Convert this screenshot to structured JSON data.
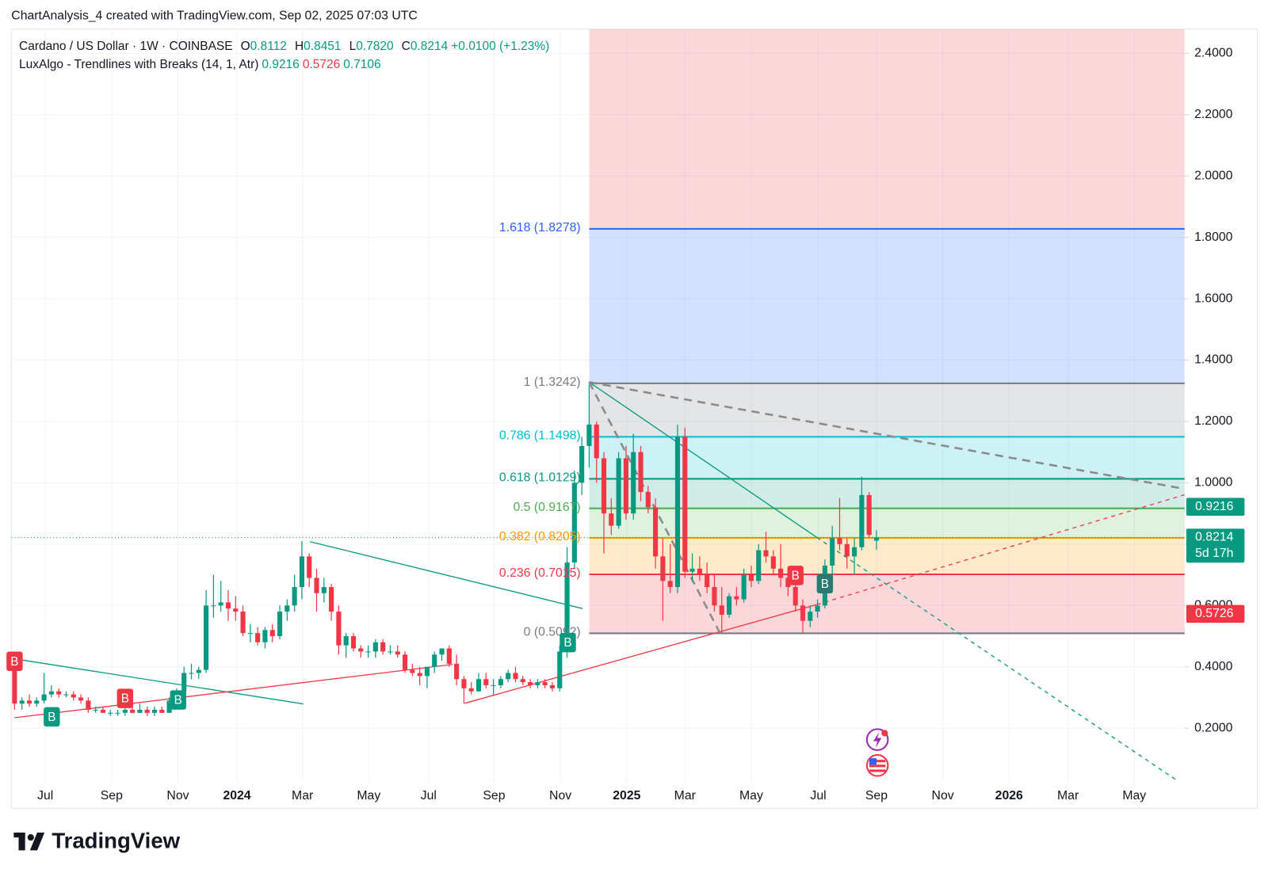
{
  "header": "ChartAnalysis_4 created with TradingView.com, Sep 02, 2025 07:03 UTC",
  "footer": "TradingView",
  "chart_data": {
    "type": "candlestick",
    "symbol": "Cardano / US Dollar · 1W · COINBASE",
    "legend": [
      {
        "key": "O",
        "value": 0.8112
      },
      {
        "key": "H",
        "value": 0.8451
      },
      {
        "key": "L",
        "value": {
          "value": 0.782,
          "label": "0.7820"
        }
      },
      {
        "key": "C",
        "value": 0.8214
      }
    ],
    "change": {
      "value": 0.01,
      "label": "+0.0100 (+1.23%)"
    },
    "indicator": {
      "name": "LuxAlgo - Trendlines with Breaks (14, 1, Atr)",
      "values": [
        0.9216,
        0.5726,
        0.7106
      ],
      "colors": [
        "#089981",
        "#f23645",
        "#089981"
      ]
    },
    "up_color": "#089981",
    "down_color": "#f23645",
    "ohlc": [
      [
        0.42,
        0.43,
        0.26,
        0.28
      ],
      [
        0.28,
        0.3,
        0.26,
        0.29
      ],
      [
        0.29,
        0.31,
        0.27,
        0.28
      ],
      [
        0.28,
        0.3,
        0.27,
        0.29
      ],
      [
        0.29,
        0.38,
        0.28,
        0.31
      ],
      [
        0.31,
        0.34,
        0.3,
        0.32
      ],
      [
        0.32,
        0.33,
        0.3,
        0.31
      ],
      [
        0.31,
        0.32,
        0.3,
        0.31
      ],
      [
        0.31,
        0.32,
        0.29,
        0.3
      ],
      [
        0.3,
        0.31,
        0.28,
        0.29
      ],
      [
        0.29,
        0.3,
        0.25,
        0.26
      ],
      [
        0.26,
        0.27,
        0.25,
        0.26
      ],
      [
        0.26,
        0.27,
        0.25,
        0.25
      ],
      [
        0.25,
        0.26,
        0.24,
        0.25
      ],
      [
        0.25,
        0.26,
        0.24,
        0.25
      ],
      [
        0.25,
        0.27,
        0.24,
        0.26
      ],
      [
        0.26,
        0.27,
        0.25,
        0.25
      ],
      [
        0.25,
        0.28,
        0.25,
        0.26
      ],
      [
        0.26,
        0.27,
        0.24,
        0.25
      ],
      [
        0.25,
        0.27,
        0.24,
        0.26
      ],
      [
        0.26,
        0.27,
        0.25,
        0.25
      ],
      [
        0.25,
        0.3,
        0.25,
        0.29
      ],
      [
        0.29,
        0.33,
        0.28,
        0.32
      ],
      [
        0.32,
        0.4,
        0.31,
        0.38
      ],
      [
        0.38,
        0.41,
        0.36,
        0.38
      ],
      [
        0.38,
        0.4,
        0.36,
        0.39
      ],
      [
        0.39,
        0.65,
        0.38,
        0.6
      ],
      [
        0.6,
        0.7,
        0.56,
        0.6
      ],
      [
        0.6,
        0.68,
        0.58,
        0.61
      ],
      [
        0.61,
        0.65,
        0.55,
        0.59
      ],
      [
        0.59,
        0.63,
        0.55,
        0.58
      ],
      [
        0.58,
        0.6,
        0.5,
        0.51
      ],
      [
        0.51,
        0.54,
        0.48,
        0.51
      ],
      [
        0.51,
        0.53,
        0.47,
        0.48
      ],
      [
        0.48,
        0.53,
        0.46,
        0.52
      ],
      [
        0.52,
        0.54,
        0.48,
        0.5
      ],
      [
        0.5,
        0.6,
        0.49,
        0.58
      ],
      [
        0.58,
        0.62,
        0.55,
        0.6
      ],
      [
        0.6,
        0.7,
        0.58,
        0.66
      ],
      [
        0.66,
        0.81,
        0.62,
        0.76
      ],
      [
        0.76,
        0.77,
        0.66,
        0.69
      ],
      [
        0.69,
        0.72,
        0.58,
        0.64
      ],
      [
        0.64,
        0.69,
        0.61,
        0.66
      ],
      [
        0.66,
        0.67,
        0.55,
        0.58
      ],
      [
        0.58,
        0.6,
        0.44,
        0.47
      ],
      [
        0.47,
        0.51,
        0.43,
        0.5
      ],
      [
        0.5,
        0.51,
        0.45,
        0.46
      ],
      [
        0.46,
        0.47,
        0.43,
        0.45
      ],
      [
        0.45,
        0.47,
        0.43,
        0.45
      ],
      [
        0.45,
        0.49,
        0.43,
        0.48
      ],
      [
        0.48,
        0.49,
        0.44,
        0.45
      ],
      [
        0.45,
        0.47,
        0.44,
        0.45
      ],
      [
        0.45,
        0.47,
        0.43,
        0.44
      ],
      [
        0.44,
        0.45,
        0.38,
        0.39
      ],
      [
        0.39,
        0.41,
        0.37,
        0.38
      ],
      [
        0.38,
        0.4,
        0.34,
        0.37
      ],
      [
        0.37,
        0.4,
        0.33,
        0.4
      ],
      [
        0.4,
        0.45,
        0.38,
        0.44
      ],
      [
        0.44,
        0.46,
        0.42,
        0.46
      ],
      [
        0.46,
        0.47,
        0.4,
        0.41
      ],
      [
        0.41,
        0.44,
        0.34,
        0.36
      ],
      [
        0.36,
        0.37,
        0.28,
        0.33
      ],
      [
        0.33,
        0.35,
        0.31,
        0.32
      ],
      [
        0.32,
        0.38,
        0.32,
        0.36
      ],
      [
        0.36,
        0.38,
        0.33,
        0.34
      ],
      [
        0.34,
        0.36,
        0.31,
        0.34
      ],
      [
        0.34,
        0.37,
        0.33,
        0.36
      ],
      [
        0.36,
        0.39,
        0.35,
        0.38
      ],
      [
        0.38,
        0.4,
        0.35,
        0.36
      ],
      [
        0.36,
        0.37,
        0.34,
        0.35
      ],
      [
        0.35,
        0.36,
        0.33,
        0.34
      ],
      [
        0.34,
        0.36,
        0.33,
        0.35
      ],
      [
        0.35,
        0.36,
        0.33,
        0.34
      ],
      [
        0.34,
        0.35,
        0.32,
        0.33
      ],
      [
        0.33,
        0.47,
        0.32,
        0.45
      ],
      [
        0.45,
        0.79,
        0.43,
        0.74
      ],
      [
        0.74,
        1.04,
        0.72,
        1.0
      ],
      [
        1.0,
        1.15,
        0.96,
        1.12
      ],
      [
        1.12,
        1.32,
        1.05,
        1.19
      ],
      [
        1.19,
        1.2,
        1.0,
        1.08
      ],
      [
        1.08,
        1.1,
        0.77,
        0.9
      ],
      [
        0.9,
        0.95,
        0.83,
        0.86
      ],
      [
        0.86,
        1.1,
        0.85,
        1.08
      ],
      [
        1.08,
        1.12,
        0.88,
        0.9
      ],
      [
        0.9,
        1.16,
        0.88,
        1.1
      ],
      [
        1.1,
        1.12,
        0.94,
        0.97
      ],
      [
        0.97,
        0.99,
        0.9,
        0.92
      ],
      [
        0.92,
        0.95,
        0.72,
        0.76
      ],
      [
        0.76,
        0.82,
        0.55,
        0.68
      ],
      [
        0.68,
        0.8,
        0.64,
        0.66
      ],
      [
        0.66,
        1.19,
        0.64,
        1.15
      ],
      [
        1.15,
        1.18,
        0.69,
        0.71
      ],
      [
        0.71,
        0.77,
        0.68,
        0.72
      ],
      [
        0.72,
        0.76,
        0.68,
        0.7
      ],
      [
        0.7,
        0.74,
        0.64,
        0.66
      ],
      [
        0.66,
        0.7,
        0.58,
        0.6
      ],
      [
        0.6,
        0.66,
        0.51,
        0.57
      ],
      [
        0.57,
        0.64,
        0.56,
        0.63
      ],
      [
        0.63,
        0.66,
        0.6,
        0.62
      ],
      [
        0.62,
        0.72,
        0.61,
        0.7
      ],
      [
        0.7,
        0.73,
        0.66,
        0.68
      ],
      [
        0.68,
        0.8,
        0.67,
        0.78
      ],
      [
        0.78,
        0.84,
        0.74,
        0.76
      ],
      [
        0.76,
        0.78,
        0.7,
        0.72
      ],
      [
        0.72,
        0.8,
        0.66,
        0.69
      ],
      [
        0.69,
        0.72,
        0.63,
        0.66
      ],
      [
        0.66,
        0.7,
        0.58,
        0.6
      ],
      [
        0.6,
        0.62,
        0.51,
        0.55
      ],
      [
        0.55,
        0.6,
        0.53,
        0.58
      ],
      [
        0.58,
        0.62,
        0.56,
        0.6
      ],
      [
        0.6,
        0.75,
        0.59,
        0.73
      ],
      [
        0.73,
        0.86,
        0.7,
        0.82
      ],
      [
        0.82,
        0.95,
        0.78,
        0.8
      ],
      [
        0.8,
        0.82,
        0.72,
        0.76
      ],
      [
        0.76,
        0.82,
        0.7,
        0.79
      ],
      [
        0.79,
        1.02,
        0.78,
        0.96
      ],
      [
        0.96,
        0.97,
        0.82,
        0.83
      ],
      [
        0.8112,
        0.8451,
        0.782,
        0.8214
      ]
    ],
    "xlim": [
      -0.44,
      158.84
    ],
    "xticks": [
      {
        "value": 4.17,
        "label": "Jul"
      },
      {
        "value": 13.17,
        "label": "Sep"
      },
      {
        "value": 22.17,
        "label": "Nov"
      },
      {
        "value": 30.19,
        "label": "2024"
      },
      {
        "value": 39.08,
        "label": "Mar"
      },
      {
        "value": 48.08,
        "label": "May"
      },
      {
        "value": 56.2,
        "label": "Jul"
      },
      {
        "value": 65.09,
        "label": "Sep"
      },
      {
        "value": 74.09,
        "label": "Nov"
      },
      {
        "value": 83.1,
        "label": "2025"
      },
      {
        "value": 91,
        "label": "Mar"
      },
      {
        "value": 100,
        "label": "May"
      },
      {
        "value": 109.1,
        "label": "Jul"
      },
      {
        "value": 117,
        "label": "Sep"
      },
      {
        "value": 126,
        "label": "Nov"
      },
      {
        "value": 135,
        "label": "2026"
      },
      {
        "value": 143,
        "label": "Mar"
      },
      {
        "value": 152,
        "label": "May"
      }
    ],
    "ylim": [
      0.023,
      2.479
    ],
    "yticks": [
      {
        "value": 0.2,
        "label": "0.2000"
      },
      {
        "value": 0.4,
        "label": "0.4000"
      },
      {
        "value": 0.6,
        "label": "0.6000"
      },
      {
        "value": 0.8,
        "label": "0.8000"
      },
      {
        "value": 1,
        "label": "1.0000"
      },
      {
        "value": 1.2,
        "label": "1.2000"
      },
      {
        "value": 1.4,
        "label": "1.4000"
      },
      {
        "value": 1.6,
        "label": "1.6000"
      },
      {
        "value": 1.8,
        "label": "1.8000"
      },
      {
        "value": 2,
        "label": "2.0000"
      },
      {
        "value": 2.2,
        "label": "2.2000"
      },
      {
        "value": 2.4,
        "label": "2.4000"
      }
    ],
    "grid": true,
    "fib": {
      "x_start": 78,
      "levels": [
        {
          "value": 0.5092,
          "label": "0 (0.5092)",
          "color": "#787b86",
          "fill": "rgba(242,54,69,0.2)"
        },
        {
          "value": 0.7015,
          "label": "0.236 (0.7015)",
          "color": "#f23645",
          "fill": "rgba(255,152,0,0.2)"
        },
        {
          "value": 0.8205,
          "label": "0.382 (0.8205)",
          "color": "#ff9800",
          "fill": "rgba(76,175,80,0.18)"
        },
        {
          "value": 0.9167,
          "label": "0.5 (0.9167)",
          "color": "#4caf50",
          "fill": "rgba(8,153,129,0.18)"
        },
        {
          "value": 1.0129,
          "label": "0.618 (1.0129)",
          "color": "#089981",
          "fill": "rgba(0,188,212,0.2)"
        },
        {
          "value": 1.1498,
          "label": "0.786 (1.1498)",
          "color": "#00bcd4",
          "fill": "rgba(120,123,134,0.2)"
        },
        {
          "value": 1.3242,
          "label": "1 (1.3242)",
          "color": "#787b86",
          "fill": "rgba(41,98,255,0.2)"
        },
        {
          "value": 1.8278,
          "label": "1.618 (1.8278)",
          "color": "#2962ff",
          "fill": "rgba(242,54,69,0.2)"
        }
      ]
    },
    "trendlines": [
      {
        "x": [
          0,
          39.2
        ],
        "y": [
          0.426,
          0.279
        ],
        "color": "#089981",
        "dash": false
      },
      {
        "x": [
          0,
          59.5
        ],
        "y": [
          0.234,
          0.408
        ],
        "color": "#f23645",
        "dash": false
      },
      {
        "x": [
          61.1,
          108.9
        ],
        "y": [
          0.281,
          0.603
        ],
        "color": "#f23645",
        "dash": false
      },
      {
        "x": [
          108.9,
          158.84
        ],
        "y": [
          0.603,
          0.961
        ],
        "color": "#f23645",
        "dash": true
      },
      {
        "x": [
          40.1,
          77.1
        ],
        "y": [
          0.808,
          0.59
        ],
        "color": "#089981",
        "dash": false
      },
      {
        "x": [
          78,
          108.9
        ],
        "y": [
          1.328,
          0.822
        ],
        "color": "#089981",
        "dash": false
      },
      {
        "x": [
          108.9,
          157.7
        ],
        "y": [
          0.822,
          0.031
        ],
        "color": "#089981",
        "dash": true
      },
      {
        "x": [
          78,
          158.84
        ],
        "y": [
          1.328,
          0.98
        ],
        "color": "#8a8a8a",
        "dash": true
      },
      {
        "x": [
          78,
          95.7
        ],
        "y": [
          1.328,
          0.513
        ],
        "color": "#8a8a8a",
        "dash": true
      }
    ],
    "breaks": [
      {
        "x": 0,
        "y": 0.418,
        "label": "B",
        "color": "#f23645"
      },
      {
        "x": 5.05,
        "y": 0.237,
        "label": "B",
        "color": "#089981"
      },
      {
        "x": 15,
        "y": 0.297,
        "label": "B",
        "color": "#f23645"
      },
      {
        "x": 22.2,
        "y": 0.292,
        "label": "B",
        "color": "#089981"
      },
      {
        "x": 75.1,
        "y": 0.479,
        "label": "B",
        "color": "#089981"
      },
      {
        "x": 106,
        "y": 0.698,
        "label": "B",
        "color": "#f23645"
      },
      {
        "x": 110,
        "y": 0.671,
        "label": "B",
        "color": "#2a7a73"
      }
    ],
    "badges": [
      {
        "value": 0.9216,
        "color": "#089981"
      },
      {
        "value": 0.8214,
        "sub": "5d 17h",
        "color": "#089981",
        "dotted_line": true
      },
      {
        "value": 0.5726,
        "color": "#f23645"
      }
    ]
  }
}
